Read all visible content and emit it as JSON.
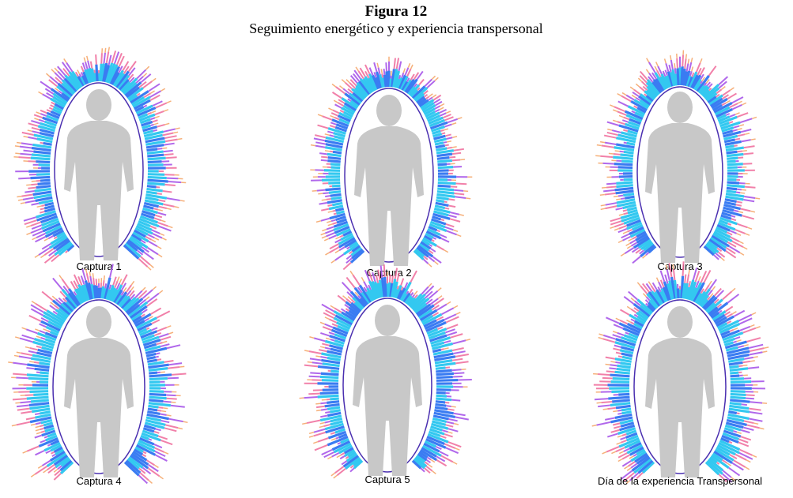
{
  "header": {
    "title": "Figura 12",
    "subtitle": "Seguimiento energético y experiencia transpersonal"
  },
  "panels": [
    {
      "caption": "Captura 1"
    },
    {
      "caption": "Captura 2"
    },
    {
      "caption": "Captura 3"
    },
    {
      "caption": "Captura 4"
    },
    {
      "caption": "Captura 5"
    },
    {
      "caption": "Día de la experiencia Transpersonal"
    }
  ]
}
